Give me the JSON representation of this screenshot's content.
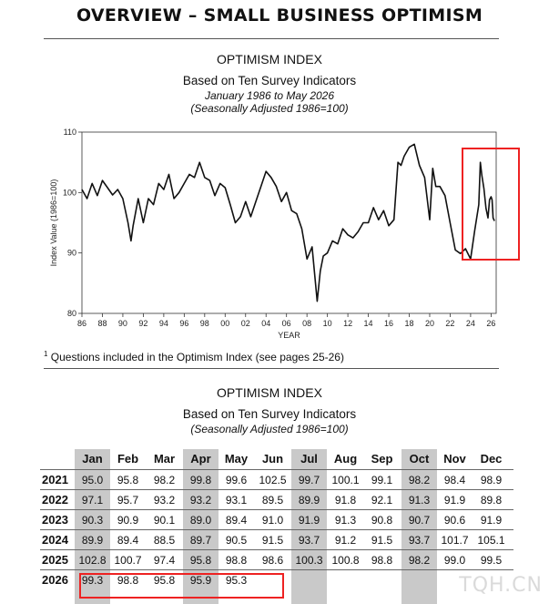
{
  "page": {
    "title": "OVERVIEW – SMALL BUSINESS OPTIMISM",
    "footnote_marker": "1",
    "footnote": "Questions included in the Optimism Index (see pages 25-26)",
    "watermark": "TQH.CN"
  },
  "chart_section": {
    "title": "OPTIMISM INDEX",
    "subtitle": "Based on Ten Survey Indicators",
    "period": "January 1986 to May 2026",
    "note": "(Seasonally Adjusted 1986=100)"
  },
  "table_section": {
    "title": "OPTIMISM INDEX",
    "subtitle": "Based on Ten Survey Indicators",
    "note": "(Seasonally Adjusted 1986=100)"
  },
  "chart_data": {
    "type": "line",
    "title": "OPTIMISM INDEX",
    "xlabel": "YEAR",
    "ylabel": "Index Value (1986=100)",
    "ylim": [
      80,
      110
    ],
    "yticks": [
      "80",
      "90",
      "100",
      "110"
    ],
    "xlim": [
      1986,
      2026.5
    ],
    "xticks": [
      "86",
      "88",
      "90",
      "92",
      "94",
      "96",
      "98",
      "00",
      "02",
      "04",
      "06",
      "08",
      "10",
      "12",
      "14",
      "16",
      "18",
      "20",
      "22",
      "24",
      "26"
    ],
    "highlight_box": {
      "x_range": [
        2023.7,
        2026.9
      ],
      "y_range": [
        88,
        112
      ]
    },
    "series": [
      {
        "x": [
          1986,
          1986.5,
          1987,
          1987.5,
          1988,
          1988.5,
          1989,
          1989.5,
          1990,
          1990.5,
          1990.8,
          1991,
          1991.5,
          1992,
          1992.5,
          1993,
          1993.5,
          1994,
          1994.5,
          1995,
          1995.5,
          1996,
          1996.5,
          1997,
          1997.5,
          1998,
          1998.5,
          1999,
          1999.5,
          2000,
          2000.5,
          2001,
          2001.5,
          2002,
          2002.5,
          2003,
          2003.5,
          2004,
          2004.5,
          2005,
          2005.5,
          2006,
          2006.5,
          2007,
          2007.5,
          2008,
          2008.5,
          2009,
          2009.3,
          2009.6,
          2010,
          2010.5,
          2011,
          2011.5,
          2012,
          2012.5,
          2013,
          2013.5,
          2014,
          2014.5,
          2015,
          2015.5,
          2016,
          2016.5,
          2016.9,
          2017.2,
          2017.5,
          2018,
          2018.5,
          2019,
          2019.5,
          2020,
          2020.3,
          2020.6,
          2021,
          2021.5,
          2022,
          2022.5,
          2023,
          2023.5,
          2024,
          2024.4,
          2024.8,
          2024.95,
          2025.1,
          2025.3,
          2025.5,
          2025.7,
          2025.85,
          2026,
          2026.1,
          2026.2,
          2026.33
        ],
        "values": [
          100.5,
          99.0,
          101.5,
          99.5,
          102.0,
          100.8,
          99.6,
          100.5,
          99.0,
          95.0,
          92.0,
          94.5,
          99.0,
          95.0,
          99.0,
          98.0,
          101.5,
          100.5,
          103.0,
          99.0,
          100.0,
          101.5,
          103.0,
          102.5,
          105.0,
          102.5,
          102.0,
          99.5,
          101.5,
          100.8,
          98.0,
          95.0,
          96.0,
          98.5,
          96.0,
          98.5,
          101.0,
          103.5,
          102.5,
          101.0,
          98.5,
          100.0,
          97.0,
          96.5,
          94.0,
          89.0,
          91.0,
          82.0,
          87.0,
          89.5,
          90.0,
          92.0,
          91.5,
          94.0,
          93.0,
          92.5,
          93.5,
          95.0,
          95.0,
          97.5,
          95.5,
          97.0,
          94.5,
          95.5,
          105.0,
          104.5,
          106.0,
          107.5,
          108.0,
          104.5,
          102.5,
          95.5,
          104.0,
          101.0,
          101.0,
          99.5,
          95.0,
          90.5,
          89.9,
          90.7,
          89.0,
          93.7,
          98.0,
          105.0,
          102.8,
          100.7,
          97.4,
          95.8,
          98.8,
          99.3,
          98.8,
          95.8,
          95.3
        ]
      }
    ]
  },
  "table": {
    "months": [
      "Jan",
      "Feb",
      "Mar",
      "Apr",
      "May",
      "Jun",
      "Jul",
      "Aug",
      "Sep",
      "Oct",
      "Nov",
      "Dec"
    ],
    "rows": [
      {
        "year": "2021",
        "values": [
          "95.0",
          "95.8",
          "98.2",
          "99.8",
          "99.6",
          "102.5",
          "99.7",
          "100.1",
          "99.1",
          "98.2",
          "98.4",
          "98.9"
        ]
      },
      {
        "year": "2022",
        "values": [
          "97.1",
          "95.7",
          "93.2",
          "93.2",
          "93.1",
          "89.5",
          "89.9",
          "91.8",
          "92.1",
          "91.3",
          "91.9",
          "89.8"
        ]
      },
      {
        "year": "2023",
        "values": [
          "90.3",
          "90.9",
          "90.1",
          "89.0",
          "89.4",
          "91.0",
          "91.9",
          "91.3",
          "90.8",
          "90.7",
          "90.6",
          "91.9"
        ]
      },
      {
        "year": "2024",
        "values": [
          "89.9",
          "89.4",
          "88.5",
          "89.7",
          "90.5",
          "91.5",
          "93.7",
          "91.2",
          "91.5",
          "93.7",
          "101.7",
          "105.1"
        ]
      },
      {
        "year": "2025",
        "values": [
          "102.8",
          "100.7",
          "97.4",
          "95.8",
          "98.8",
          "98.6",
          "100.3",
          "100.8",
          "98.8",
          "98.2",
          "99.0",
          "99.5"
        ]
      },
      {
        "year": "2026",
        "values": [
          "99.3",
          "98.8",
          "95.8",
          "95.9",
          "95.3",
          "",
          "",
          "",
          "",
          "",
          "",
          ""
        ]
      }
    ]
  }
}
